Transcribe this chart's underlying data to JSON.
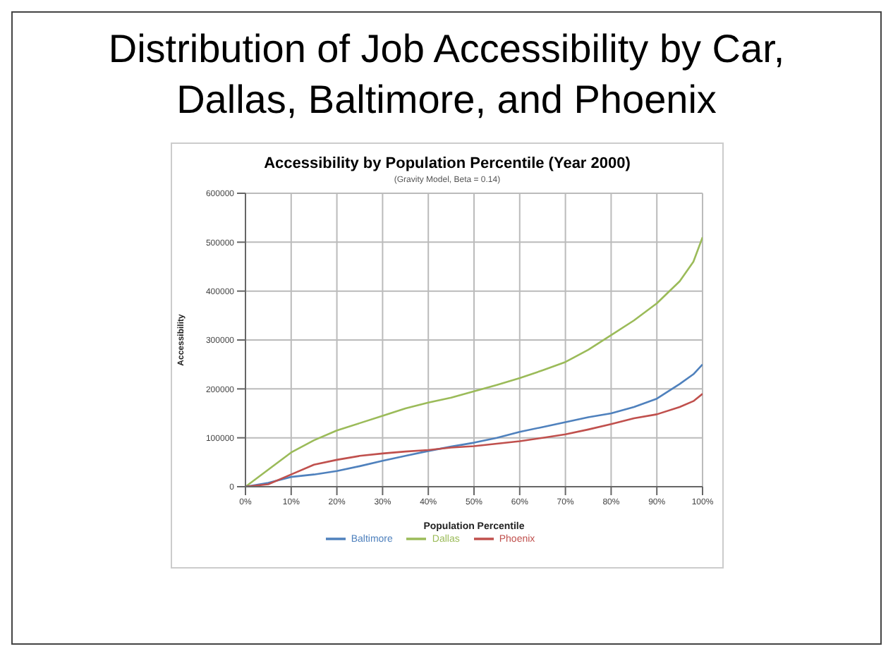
{
  "chart_data": {
    "type": "line",
    "title": "Distribution of Job Accessibility by Car, Dallas, Baltimore, and Phoenix",
    "subtitle": "Accessibility by Population Percentile (Year 2000)",
    "annotations": [
      "(Gravity Model, Beta = 0.14)"
    ],
    "xlabel": "Population Percentile",
    "ylabel": "Accessibility",
    "x": [
      0,
      5,
      10,
      15,
      20,
      25,
      30,
      35,
      40,
      45,
      50,
      55,
      60,
      65,
      70,
      75,
      80,
      85,
      90,
      95,
      98,
      100
    ],
    "series": [
      {
        "name": "Dallas",
        "color": "#9bbb59",
        "values": [
          0,
          35000,
          70000,
          95000,
          115000,
          130000,
          145000,
          160000,
          172000,
          182000,
          195000,
          208000,
          222000,
          238000,
          255000,
          280000,
          310000,
          340000,
          375000,
          420000,
          460000,
          510000
        ]
      },
      {
        "name": "Baltimore",
        "color": "#4f81bd",
        "values": [
          0,
          8000,
          20000,
          25000,
          32000,
          42000,
          53000,
          63000,
          73000,
          82000,
          90000,
          100000,
          112000,
          122000,
          132000,
          142000,
          150000,
          163000,
          180000,
          210000,
          230000,
          250000
        ]
      },
      {
        "name": "Phoenix",
        "color": "#c0504d",
        "values": [
          0,
          5000,
          25000,
          45000,
          55000,
          63000,
          68000,
          72000,
          75000,
          80000,
          83000,
          88000,
          93000,
          100000,
          107000,
          117000,
          128000,
          140000,
          148000,
          163000,
          175000,
          190000
        ]
      }
    ],
    "xlim": [
      0,
      100
    ],
    "xticks": [
      {
        "value": 0,
        "label": "0%"
      },
      {
        "value": 10,
        "label": "10%"
      },
      {
        "value": 20,
        "label": "20%"
      },
      {
        "value": 30,
        "label": "30%"
      },
      {
        "value": 40,
        "label": "40%"
      },
      {
        "value": 50,
        "label": "50%"
      },
      {
        "value": 60,
        "label": "60%"
      },
      {
        "value": 70,
        "label": "70%"
      },
      {
        "value": 80,
        "label": "80%"
      },
      {
        "value": 90,
        "label": "90%"
      },
      {
        "value": 100,
        "label": "100%"
      }
    ],
    "ylim": [
      0,
      600000
    ],
    "yticks": [
      0,
      100000,
      200000,
      300000,
      400000,
      500000,
      600000
    ],
    "grid": true,
    "legend": "bottom",
    "marker": "none",
    "line_style": "solid"
  }
}
